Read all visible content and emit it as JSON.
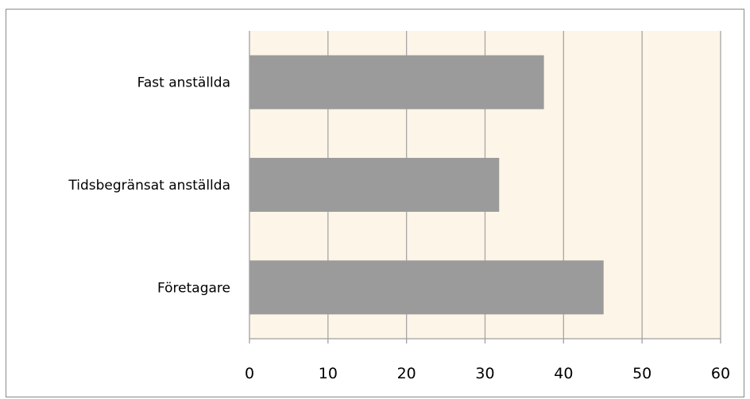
{
  "chart_data": {
    "type": "bar",
    "orientation": "horizontal",
    "title": "",
    "xlabel": "",
    "ylabel": "",
    "categories": [
      "Fast anställda",
      "Tidsbegränsat anställda",
      "Företagare"
    ],
    "values": [
      37.5,
      31.8,
      45.1
    ],
    "xlim": [
      0,
      60
    ],
    "x_ticks": [
      0,
      10,
      20,
      30,
      40,
      50,
      60
    ],
    "grid": true,
    "legend": "none",
    "colors": {
      "bar": "#9b9b9b",
      "plot_background": "#fdf5e8",
      "gridline": "#a6a6a6",
      "axis": "#a0a0a0",
      "frame": "#8a8a8a"
    }
  }
}
